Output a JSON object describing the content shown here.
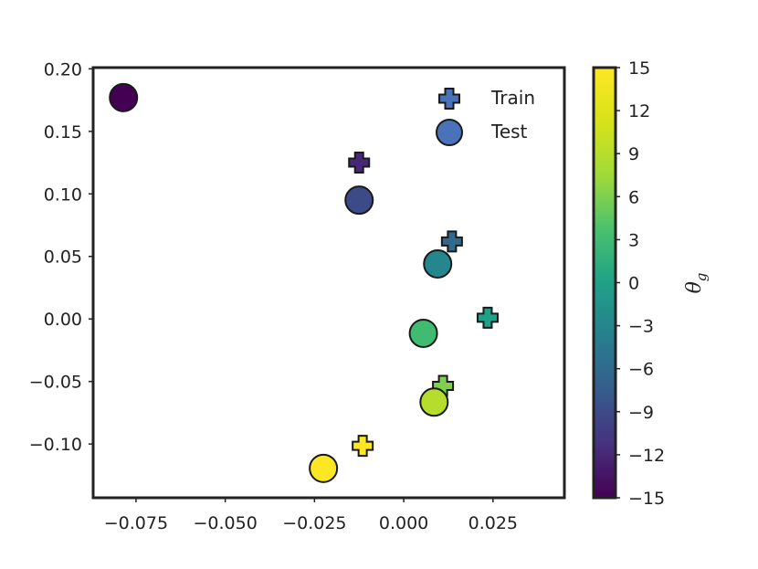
{
  "chart_data": {
    "type": "scatter",
    "title": "",
    "xlabel": "",
    "ylabel": "",
    "xlim": [
      -0.087,
      0.045
    ],
    "ylim": [
      -0.143,
      0.201
    ],
    "x_ticks": [
      -0.075,
      -0.05,
      -0.025,
      0.0,
      0.025
    ],
    "x_tick_labels": [
      "−0.075",
      "−0.050",
      "−0.025",
      "0.000",
      "0.025"
    ],
    "y_ticks": [
      -0.1,
      -0.05,
      0.0,
      0.05,
      0.1,
      0.15,
      0.2
    ],
    "y_tick_labels": [
      "−0.10",
      "−0.05",
      "0.00",
      "0.05",
      "0.10",
      "0.15",
      "0.20"
    ],
    "grid": false,
    "legend": {
      "placement": "top-right",
      "entries": [
        {
          "label": "Train",
          "marker": "plus",
          "color": "#4a72b8"
        },
        {
          "label": "Test",
          "marker": "circle",
          "color": "#4a72b8"
        }
      ]
    },
    "colorbar": {
      "label": "θ",
      "label_subscript": "g",
      "range": [
        -15,
        15
      ],
      "ticks": [
        -15,
        -12,
        -9,
        -6,
        -3,
        0,
        3,
        6,
        9,
        12,
        15
      ],
      "tick_labels": [
        "−15",
        "−12",
        "−9",
        "−6",
        "−3",
        "0",
        "3",
        "6",
        "9",
        "12",
        "15"
      ],
      "colormap": "viridis"
    },
    "series": [
      {
        "name": "Train",
        "marker": "plus",
        "points": [
          {
            "x": -0.0125,
            "y": 0.125,
            "theta": -12
          },
          {
            "x": 0.0135,
            "y": 0.062,
            "theta": -6
          },
          {
            "x": 0.0235,
            "y": 0.001,
            "theta": 0
          },
          {
            "x": 0.011,
            "y": -0.0535,
            "theta": 6
          },
          {
            "x": -0.0115,
            "y": -0.1015,
            "theta": 15
          }
        ]
      },
      {
        "name": "Test",
        "marker": "circle",
        "points": [
          {
            "x": -0.0785,
            "y": 0.177,
            "theta": -15
          },
          {
            "x": -0.0125,
            "y": 0.095,
            "theta": -9
          },
          {
            "x": 0.0095,
            "y": 0.044,
            "theta": -3
          },
          {
            "x": 0.0055,
            "y": -0.0115,
            "theta": 3
          },
          {
            "x": 0.0085,
            "y": -0.0665,
            "theta": 9
          },
          {
            "x": -0.0225,
            "y": -0.1195,
            "theta": 15
          }
        ]
      }
    ]
  }
}
